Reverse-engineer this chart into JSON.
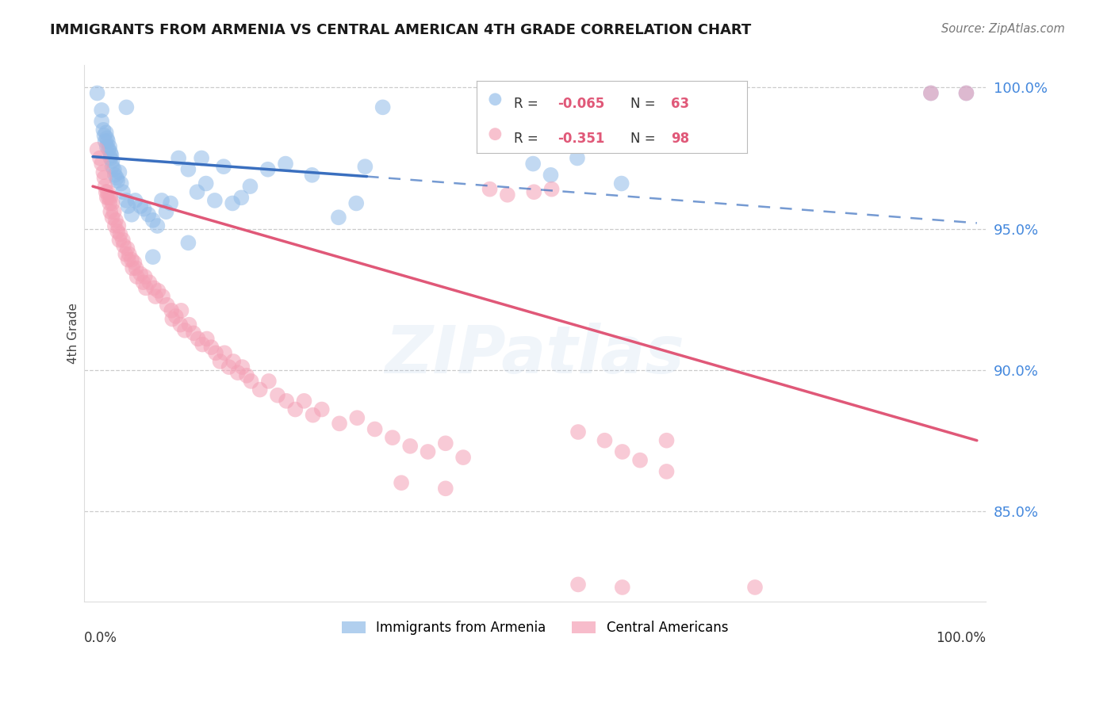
{
  "title": "IMMIGRANTS FROM ARMENIA VS CENTRAL AMERICAN 4TH GRADE CORRELATION CHART",
  "source": "Source: ZipAtlas.com",
  "ylabel": "4th Grade",
  "watermark": "ZIPatlas",
  "ylim": [
    0.818,
    1.008
  ],
  "xlim": [
    -0.01,
    1.01
  ],
  "yticks": [
    0.85,
    0.9,
    0.95,
    1.0
  ],
  "ytick_labels": [
    "85.0%",
    "90.0%",
    "95.0%",
    "100.0%"
  ],
  "blue_color": "#90BBE8",
  "pink_color": "#F4A0B5",
  "blue_line_color": "#3a6fbf",
  "pink_line_color": "#E05878",
  "background_color": "#ffffff",
  "grid_color": "#cccccc",
  "blue_scatter": [
    [
      0.005,
      0.998
    ],
    [
      0.01,
      0.992
    ],
    [
      0.01,
      0.988
    ],
    [
      0.012,
      0.985
    ],
    [
      0.013,
      0.983
    ],
    [
      0.014,
      0.981
    ],
    [
      0.015,
      0.984
    ],
    [
      0.016,
      0.982
    ],
    [
      0.016,
      0.979
    ],
    [
      0.017,
      0.981
    ],
    [
      0.018,
      0.978
    ],
    [
      0.019,
      0.979
    ],
    [
      0.02,
      0.977
    ],
    [
      0.02,
      0.975
    ],
    [
      0.021,
      0.976
    ],
    [
      0.022,
      0.974
    ],
    [
      0.022,
      0.972
    ],
    [
      0.024,
      0.971
    ],
    [
      0.025,
      0.969
    ],
    [
      0.027,
      0.968
    ],
    [
      0.028,
      0.967
    ],
    [
      0.03,
      0.97
    ],
    [
      0.032,
      0.966
    ],
    [
      0.034,
      0.963
    ],
    [
      0.038,
      0.96
    ],
    [
      0.04,
      0.958
    ],
    [
      0.044,
      0.955
    ],
    [
      0.048,
      0.96
    ],
    [
      0.054,
      0.958
    ],
    [
      0.058,
      0.957
    ],
    [
      0.063,
      0.955
    ],
    [
      0.068,
      0.953
    ],
    [
      0.073,
      0.951
    ],
    [
      0.078,
      0.96
    ],
    [
      0.083,
      0.956
    ],
    [
      0.088,
      0.959
    ],
    [
      0.097,
      0.975
    ],
    [
      0.108,
      0.971
    ],
    [
      0.118,
      0.963
    ],
    [
      0.123,
      0.975
    ],
    [
      0.128,
      0.966
    ],
    [
      0.038,
      0.993
    ],
    [
      0.138,
      0.96
    ],
    [
      0.148,
      0.972
    ],
    [
      0.158,
      0.959
    ],
    [
      0.168,
      0.961
    ],
    [
      0.178,
      0.965
    ],
    [
      0.198,
      0.971
    ],
    [
      0.218,
      0.973
    ],
    [
      0.248,
      0.969
    ],
    [
      0.278,
      0.954
    ],
    [
      0.298,
      0.959
    ],
    [
      0.308,
      0.972
    ],
    [
      0.068,
      0.94
    ],
    [
      0.108,
      0.945
    ],
    [
      0.328,
      0.993
    ],
    [
      0.498,
      0.973
    ],
    [
      0.518,
      0.969
    ],
    [
      0.548,
      0.975
    ],
    [
      0.598,
      0.966
    ],
    [
      0.948,
      0.998
    ],
    [
      0.988,
      0.998
    ]
  ],
  "pink_scatter": [
    [
      0.005,
      0.978
    ],
    [
      0.008,
      0.975
    ],
    [
      0.01,
      0.973
    ],
    [
      0.012,
      0.97
    ],
    [
      0.013,
      0.968
    ],
    [
      0.014,
      0.965
    ],
    [
      0.015,
      0.963
    ],
    [
      0.016,
      0.961
    ],
    [
      0.017,
      0.963
    ],
    [
      0.018,
      0.961
    ],
    [
      0.019,
      0.959
    ],
    [
      0.02,
      0.961
    ],
    [
      0.02,
      0.956
    ],
    [
      0.022,
      0.959
    ],
    [
      0.022,
      0.954
    ],
    [
      0.024,
      0.956
    ],
    [
      0.025,
      0.951
    ],
    [
      0.026,
      0.953
    ],
    [
      0.028,
      0.949
    ],
    [
      0.029,
      0.951
    ],
    [
      0.03,
      0.946
    ],
    [
      0.031,
      0.948
    ],
    [
      0.034,
      0.946
    ],
    [
      0.035,
      0.944
    ],
    [
      0.037,
      0.941
    ],
    [
      0.039,
      0.943
    ],
    [
      0.04,
      0.939
    ],
    [
      0.041,
      0.941
    ],
    [
      0.044,
      0.939
    ],
    [
      0.045,
      0.936
    ],
    [
      0.047,
      0.938
    ],
    [
      0.049,
      0.936
    ],
    [
      0.05,
      0.933
    ],
    [
      0.054,
      0.934
    ],
    [
      0.057,
      0.931
    ],
    [
      0.059,
      0.933
    ],
    [
      0.06,
      0.929
    ],
    [
      0.064,
      0.931
    ],
    [
      0.069,
      0.929
    ],
    [
      0.071,
      0.926
    ],
    [
      0.074,
      0.928
    ],
    [
      0.079,
      0.926
    ],
    [
      0.084,
      0.923
    ],
    [
      0.089,
      0.921
    ],
    [
      0.09,
      0.918
    ],
    [
      0.094,
      0.919
    ],
    [
      0.099,
      0.916
    ],
    [
      0.1,
      0.921
    ],
    [
      0.104,
      0.914
    ],
    [
      0.109,
      0.916
    ],
    [
      0.114,
      0.913
    ],
    [
      0.119,
      0.911
    ],
    [
      0.124,
      0.909
    ],
    [
      0.129,
      0.911
    ],
    [
      0.134,
      0.908
    ],
    [
      0.139,
      0.906
    ],
    [
      0.144,
      0.903
    ],
    [
      0.149,
      0.906
    ],
    [
      0.154,
      0.901
    ],
    [
      0.159,
      0.903
    ],
    [
      0.164,
      0.899
    ],
    [
      0.169,
      0.901
    ],
    [
      0.174,
      0.898
    ],
    [
      0.179,
      0.896
    ],
    [
      0.189,
      0.893
    ],
    [
      0.199,
      0.896
    ],
    [
      0.209,
      0.891
    ],
    [
      0.219,
      0.889
    ],
    [
      0.229,
      0.886
    ],
    [
      0.239,
      0.889
    ],
    [
      0.249,
      0.884
    ],
    [
      0.259,
      0.886
    ],
    [
      0.279,
      0.881
    ],
    [
      0.299,
      0.883
    ],
    [
      0.319,
      0.879
    ],
    [
      0.339,
      0.876
    ],
    [
      0.359,
      0.873
    ],
    [
      0.379,
      0.871
    ],
    [
      0.399,
      0.874
    ],
    [
      0.419,
      0.869
    ],
    [
      0.449,
      0.964
    ],
    [
      0.469,
      0.962
    ],
    [
      0.499,
      0.963
    ],
    [
      0.519,
      0.964
    ],
    [
      0.549,
      0.878
    ],
    [
      0.579,
      0.875
    ],
    [
      0.599,
      0.871
    ],
    [
      0.619,
      0.868
    ],
    [
      0.649,
      0.864
    ],
    [
      0.349,
      0.86
    ],
    [
      0.399,
      0.858
    ],
    [
      0.649,
      0.875
    ],
    [
      0.549,
      0.824
    ],
    [
      0.599,
      0.823
    ],
    [
      0.749,
      0.823
    ],
    [
      0.948,
      0.998
    ],
    [
      0.988,
      0.998
    ]
  ]
}
